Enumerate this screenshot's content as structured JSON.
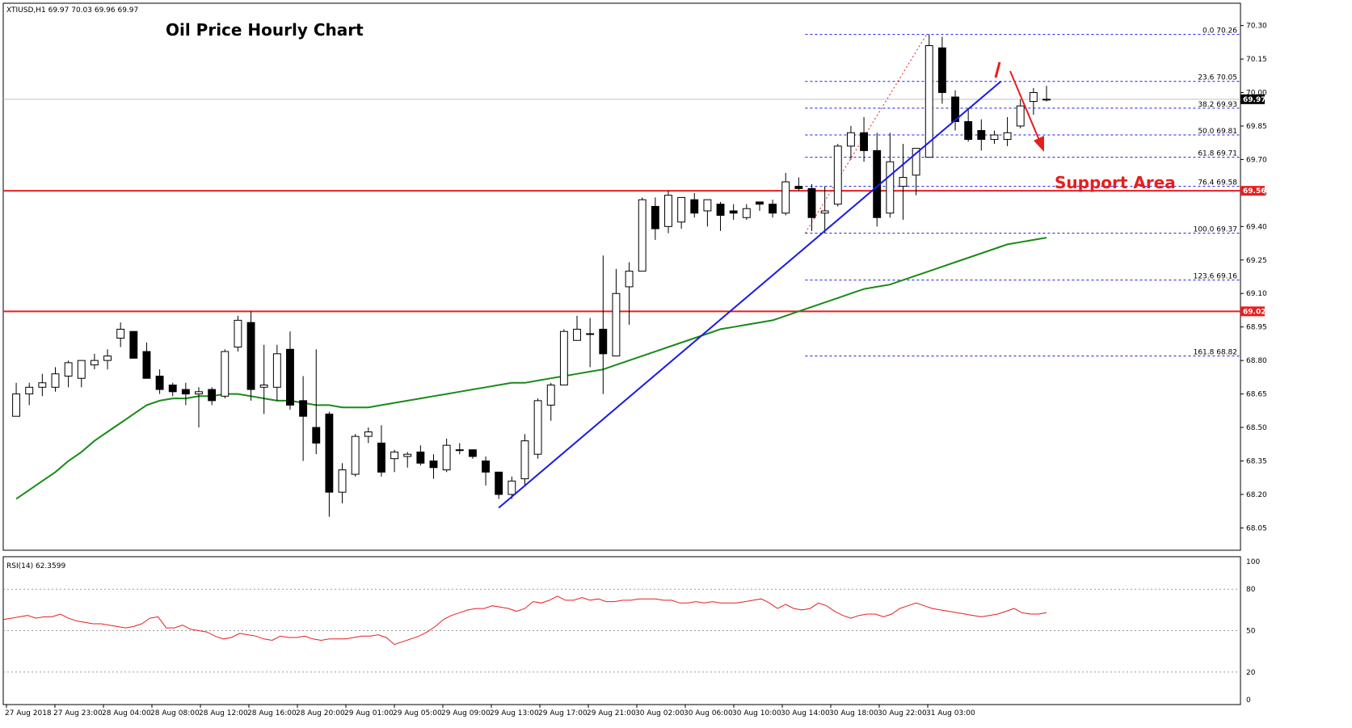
{
  "chart_data": {
    "type": "candlestick",
    "symbol_header": "XTIUSD,H1  69.97 70.03 69.96 69.97",
    "title": "Oil Price Hourly Chart",
    "annotation": "Support Area",
    "ylim": [
      67.95,
      70.4
    ],
    "y_ticks": [
      "70.30",
      "70.15",
      "70.00",
      "69.85",
      "69.70",
      "69.55",
      "69.40",
      "69.25",
      "69.10",
      "68.95",
      "68.80",
      "68.65",
      "68.50",
      "68.35",
      "68.20",
      "68.05"
    ],
    "x_labels": [
      "27 Aug 2018",
      "27 Aug 23:00",
      "28 Aug 04:00",
      "28 Aug 08:00",
      "28 Aug 12:00",
      "28 Aug 16:00",
      "28 Aug 20:00",
      "29 Aug 01:00",
      "29 Aug 05:00",
      "29 Aug 09:00",
      "29 Aug 13:00",
      "29 Aug 17:00",
      "29 Aug 21:00",
      "30 Aug 02:00",
      "30 Aug 06:00",
      "30 Aug 10:00",
      "30 Aug 14:00",
      "30 Aug 18:00",
      "30 Aug 22:00",
      "31 Aug 03:00"
    ],
    "candles": [
      [
        68.55,
        68.7,
        68.55,
        68.65
      ],
      [
        68.65,
        68.7,
        68.6,
        68.68
      ],
      [
        68.68,
        68.74,
        68.64,
        68.7
      ],
      [
        68.68,
        68.77,
        68.66,
        68.74
      ],
      [
        68.73,
        68.8,
        68.68,
        68.79
      ],
      [
        68.72,
        68.8,
        68.68,
        68.8
      ],
      [
        68.78,
        68.83,
        68.76,
        68.8
      ],
      [
        68.8,
        68.85,
        68.76,
        68.82
      ],
      [
        68.9,
        68.97,
        68.86,
        68.94
      ],
      [
        68.93,
        68.93,
        68.82,
        68.81
      ],
      [
        68.84,
        68.88,
        68.72,
        68.72
      ],
      [
        68.73,
        68.76,
        68.65,
        68.67
      ],
      [
        68.69,
        68.7,
        68.64,
        68.66
      ],
      [
        68.67,
        68.7,
        68.6,
        68.65
      ],
      [
        68.65,
        68.68,
        68.5,
        68.66
      ],
      [
        68.67,
        68.68,
        68.6,
        68.62
      ],
      [
        68.64,
        68.85,
        68.63,
        68.84
      ],
      [
        68.86,
        69.0,
        68.84,
        68.98
      ],
      [
        68.97,
        69.02,
        68.62,
        68.67
      ],
      [
        68.68,
        68.87,
        68.56,
        68.69
      ],
      [
        68.68,
        68.87,
        68.62,
        68.83
      ],
      [
        68.85,
        68.93,
        68.58,
        68.6
      ],
      [
        68.62,
        68.73,
        68.35,
        68.55
      ],
      [
        68.5,
        68.85,
        68.38,
        68.43
      ],
      [
        68.56,
        68.57,
        68.1,
        68.21
      ],
      [
        68.21,
        68.34,
        68.16,
        68.31
      ],
      [
        68.29,
        68.47,
        68.28,
        68.46
      ],
      [
        68.46,
        68.5,
        68.43,
        68.48
      ],
      [
        68.43,
        68.51,
        68.28,
        68.3
      ],
      [
        68.36,
        68.4,
        68.3,
        68.39
      ],
      [
        68.37,
        68.39,
        68.32,
        68.38
      ],
      [
        68.39,
        68.42,
        68.33,
        68.34
      ],
      [
        68.35,
        68.38,
        68.27,
        68.32
      ],
      [
        68.31,
        68.45,
        68.3,
        68.42
      ],
      [
        68.4,
        68.43,
        68.38,
        68.4
      ],
      [
        68.4,
        68.39,
        68.36,
        68.37
      ],
      [
        68.35,
        68.37,
        68.24,
        68.3
      ],
      [
        68.3,
        68.3,
        68.18,
        68.2
      ],
      [
        68.2,
        68.28,
        68.18,
        68.26
      ],
      [
        68.27,
        68.47,
        68.24,
        68.44
      ],
      [
        68.38,
        68.63,
        68.36,
        68.62
      ],
      [
        68.6,
        68.7,
        68.53,
        68.69
      ],
      [
        68.69,
        68.94,
        68.69,
        68.93
      ],
      [
        68.89,
        69.0,
        68.91,
        68.94
      ],
      [
        68.92,
        68.99,
        68.77,
        68.92
      ],
      [
        68.94,
        69.27,
        68.65,
        68.83
      ],
      [
        68.82,
        69.21,
        68.82,
        69.1
      ],
      [
        69.13,
        69.24,
        68.96,
        69.2
      ],
      [
        69.2,
        69.53,
        69.2,
        69.52
      ],
      [
        69.49,
        69.53,
        69.34,
        69.39
      ],
      [
        69.4,
        69.56,
        69.37,
        69.54
      ],
      [
        69.42,
        69.53,
        69.39,
        69.53
      ],
      [
        69.52,
        69.55,
        69.44,
        69.46
      ],
      [
        69.47,
        69.52,
        69.4,
        69.52
      ],
      [
        69.5,
        69.51,
        69.38,
        69.45
      ],
      [
        69.47,
        69.5,
        69.43,
        69.46
      ],
      [
        69.44,
        69.5,
        69.43,
        69.48
      ],
      [
        69.51,
        69.51,
        69.47,
        69.5
      ],
      [
        69.5,
        69.52,
        69.44,
        69.46
      ],
      [
        69.46,
        69.64,
        69.45,
        69.6
      ],
      [
        69.58,
        69.62,
        69.56,
        69.57
      ],
      [
        69.57,
        69.59,
        69.38,
        69.44
      ],
      [
        69.46,
        69.58,
        69.37,
        69.47
      ],
      [
        69.5,
        69.77,
        69.49,
        69.76
      ],
      [
        69.76,
        69.85,
        69.7,
        69.82
      ],
      [
        69.82,
        69.89,
        69.69,
        69.74
      ],
      [
        69.74,
        69.82,
        69.4,
        69.44
      ],
      [
        69.46,
        69.82,
        69.44,
        69.69
      ],
      [
        69.58,
        69.77,
        69.43,
        69.62
      ],
      [
        69.63,
        69.74,
        69.54,
        69.75
      ],
      [
        69.71,
        70.26,
        69.71,
        70.21
      ],
      [
        70.2,
        70.25,
        69.95,
        70.0
      ],
      [
        69.98,
        70.01,
        69.83,
        69.87
      ],
      [
        69.87,
        69.93,
        69.78,
        69.79
      ],
      [
        69.83,
        69.88,
        69.74,
        69.79
      ],
      [
        69.79,
        69.83,
        69.77,
        69.81
      ],
      [
        69.79,
        69.89,
        69.76,
        69.82
      ],
      [
        69.85,
        69.97,
        69.84,
        69.94
      ],
      [
        69.96,
        70.02,
        69.9,
        70.0
      ],
      [
        69.97,
        70.03,
        69.96,
        69.97
      ]
    ],
    "ma_series": {
      "name": "",
      "values": [
        68.18,
        68.22,
        68.26,
        68.3,
        68.35,
        68.39,
        68.44,
        68.48,
        68.52,
        68.56,
        68.6,
        68.62,
        68.63,
        68.63,
        68.64,
        68.64,
        68.65,
        68.65,
        68.64,
        68.63,
        68.62,
        68.62,
        68.61,
        68.6,
        68.6,
        68.59,
        68.59,
        68.59,
        68.6,
        68.61,
        68.62,
        68.63,
        68.64,
        68.65,
        68.66,
        68.67,
        68.68,
        68.69,
        68.7,
        68.7,
        68.71,
        68.72,
        68.73,
        68.74,
        68.75,
        68.76,
        68.78,
        68.8,
        68.82,
        68.84,
        68.86,
        68.88,
        68.9,
        68.92,
        68.94,
        68.95,
        68.96,
        68.97,
        68.98,
        69.0,
        69.02,
        69.04,
        69.06,
        69.08,
        69.1,
        69.12,
        69.13,
        69.14,
        69.16,
        69.18,
        69.2,
        69.22,
        69.24,
        69.26,
        69.28,
        69.3,
        69.32,
        69.33,
        69.34,
        69.35
      ]
    },
    "horizontal_lines": [
      {
        "price": 69.56,
        "label": "69.56",
        "color": "#e81e1e"
      },
      {
        "price": 69.02,
        "label": "69.02",
        "color": "#e81e1e"
      }
    ],
    "fibonacci": [
      {
        "price": 70.26,
        "label": "0.0 70.26"
      },
      {
        "price": 70.05,
        "label": "23.6 70.05"
      },
      {
        "price": 69.93,
        "label": "38.2 69.93"
      },
      {
        "price": 69.81,
        "label": "50.0 69.81"
      },
      {
        "price": 69.71,
        "label": "61.8 69.71"
      },
      {
        "price": 69.58,
        "label": "76.4 69.58"
      },
      {
        "price": 69.37,
        "label": "100.0 69.37"
      },
      {
        "price": 69.16,
        "label": "123.6 69.16"
      },
      {
        "price": 68.82,
        "label": "161.8 68.82"
      }
    ],
    "current_price": {
      "price": 69.97,
      "label": "69.97"
    },
    "trendline": {
      "from": [
        37,
        68.14
      ],
      "to": [
        75.5,
        70.05
      ],
      "color": "#1a1ae6"
    },
    "rsi": {
      "label": "RSI(14) 62.3599",
      "ylim": [
        0,
        100
      ],
      "levels": [
        "100",
        "80",
        "50",
        "20",
        "0"
      ],
      "values": [
        58,
        59,
        60,
        61,
        59,
        60,
        60,
        62,
        59,
        57,
        56,
        55,
        55,
        54,
        53,
        52,
        53,
        55,
        59,
        60,
        52,
        52,
        54,
        51,
        50,
        49,
        46,
        44,
        45,
        48,
        47,
        46,
        44,
        43,
        46,
        45,
        45,
        46,
        44,
        43,
        44,
        44,
        44,
        45,
        46,
        46,
        47,
        45,
        40,
        42,
        44,
        46,
        49,
        53,
        58,
        61,
        63,
        65,
        66,
        66,
        68,
        67,
        66,
        64,
        66,
        71,
        70,
        72,
        75,
        72,
        72,
        74,
        72,
        73,
        71,
        71,
        72,
        72,
        73,
        73,
        73,
        72,
        72,
        70,
        70,
        71,
        70,
        71,
        70,
        70,
        70,
        71,
        72,
        73,
        70,
        66,
        69,
        66,
        65,
        66,
        70,
        68,
        64,
        61,
        59,
        61,
        62,
        62,
        60,
        62,
        66,
        68,
        70,
        68,
        66,
        65,
        64,
        63,
        62,
        61,
        60,
        61,
        62,
        64,
        66,
        63,
        62,
        62,
        63
      ]
    },
    "colors": {
      "candle_bull": "#ffffff",
      "candle_bear": "#000000",
      "ma": "#1a8a1a",
      "rsi": "#e81e1e",
      "fib": "#1a1ae6",
      "support": "#e81e1e",
      "trendline": "#1a1ae6",
      "price_marker": "#000000"
    }
  }
}
